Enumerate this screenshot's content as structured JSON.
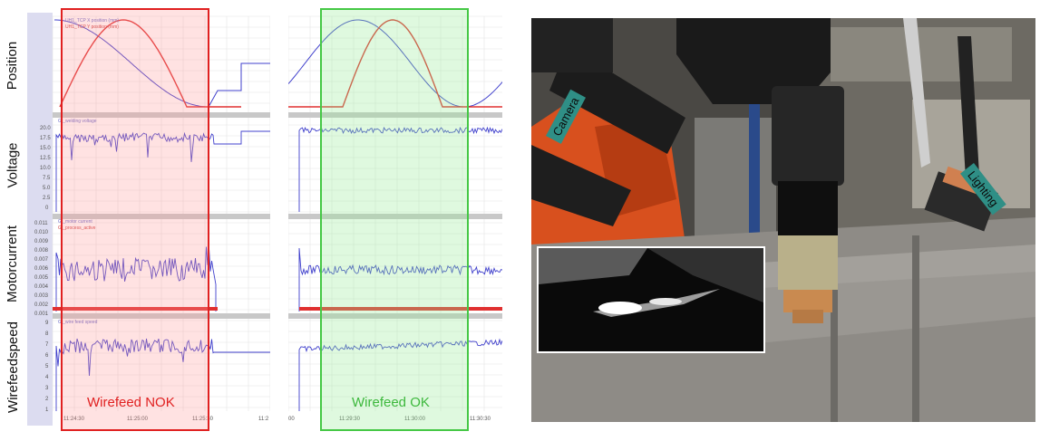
{
  "row_labels": {
    "position": "Position",
    "voltage": "Voltage",
    "motorcurrent": "Motorcurrent",
    "wirefeedspeed": "Wirefeedspeed"
  },
  "left_chart": {
    "legend_position": [
      "UH1_TCP X position (mm)",
      "UH1_TCP Y position (mm)"
    ],
    "legend_voltage": "Gt_welding voltage",
    "legend_current": [
      "Gt_motor current",
      "Gt_process_active"
    ],
    "legend_wirefeed": "Gt_wire feed speed",
    "voltage_ticks": [
      "20.0",
      "17.5",
      "15.0",
      "12.5",
      "10.0",
      "7.5",
      "5.0",
      "2.5",
      "0"
    ],
    "current_ticks": [
      "0.011",
      "0.010",
      "0.009",
      "0.008",
      "0.007",
      "0.006",
      "0.005",
      "0.004",
      "0.003",
      "0.002",
      "0.001"
    ],
    "wirefeed_ticks": [
      "9",
      "8",
      "7",
      "6",
      "5",
      "4",
      "3",
      "2",
      "1"
    ],
    "time_ticks": [
      "11:24:30",
      "11:25:00",
      "11:25:30",
      "11:2"
    ],
    "highlight_label": "Wirefeed NOK",
    "highlight_color": "#e02020"
  },
  "middle_chart": {
    "time_ticks": [
      "00",
      "11:29:30",
      "11:30:00",
      "11:30:30"
    ],
    "highlight_label": "Wirefeed OK",
    "highlight_color": "#45c845"
  },
  "photo": {
    "camera_label": "Camera",
    "lighting_label": "Lighting",
    "tag_color": "#2f8f86"
  },
  "colors": {
    "series_blue": "#4040cc",
    "series_red": "#e03030",
    "grid": "#e4e4e4",
    "separator": "#c8c8c8"
  }
}
